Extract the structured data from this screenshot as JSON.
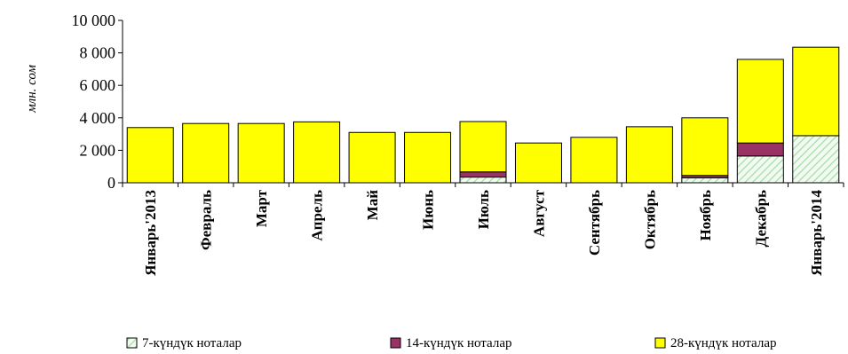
{
  "chart_data": {
    "type": "bar",
    "stacked": true,
    "title": "",
    "xlabel": "",
    "ylabel": "млн. сом",
    "ylim": [
      0,
      10000
    ],
    "yticks": [
      0,
      2000,
      4000,
      6000,
      8000,
      10000
    ],
    "ytick_labels": [
      "0",
      "2 000",
      "4 000",
      "6 000",
      "8 000",
      "10 000"
    ],
    "grid": false,
    "legend_position": "bottom",
    "categories": [
      "Январь'2013",
      "Февраль",
      "Март",
      "Апрель",
      "Май",
      "Июнь",
      "Июль",
      "Август",
      "Сентябрь",
      "Октябрь",
      "Ноябрь",
      "Декабрь",
      "Январь'2014"
    ],
    "series": [
      {
        "name": "7-күндүк ноталар",
        "color": "#e8f5e8",
        "pattern": "green-hatch",
        "values": [
          0,
          0,
          0,
          0,
          0,
          0,
          350,
          0,
          0,
          0,
          300,
          1650,
          2900
        ]
      },
      {
        "name": "14-күндүк ноталар",
        "color": "#993366",
        "values": [
          0,
          0,
          0,
          0,
          0,
          0,
          320,
          0,
          0,
          0,
          150,
          800,
          0
        ]
      },
      {
        "name": "28-күндүк ноталар",
        "color": "#ffff00",
        "values": [
          3400,
          3650,
          3650,
          3750,
          3100,
          3100,
          3100,
          2450,
          2800,
          3450,
          3550,
          5150,
          5450
        ]
      }
    ]
  }
}
